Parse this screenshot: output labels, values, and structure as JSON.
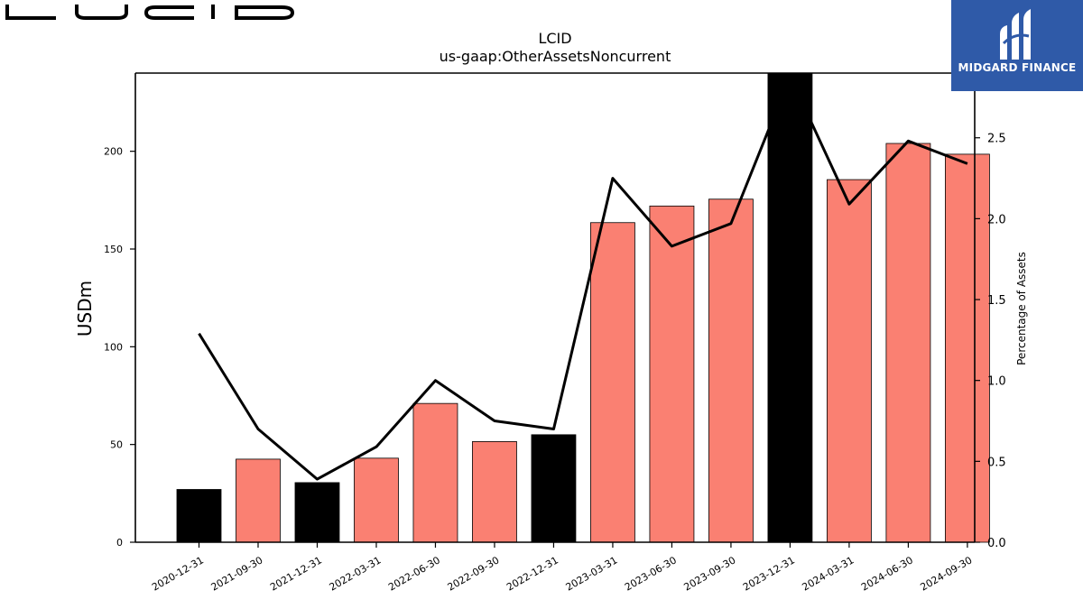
{
  "logo": {
    "company": "LUCID",
    "icon": "lucid-wordmark-logo"
  },
  "badge": {
    "label": "MIDGARD FINANCE",
    "icon": "midgard-finance-logo",
    "color": "#2f5aa8"
  },
  "chart_data": {
    "type": "bar",
    "title": "LCID",
    "subtitle": "us-gaap:OtherAssetsNoncurrent",
    "ylabel": "USDm",
    "ylabel_right": "Percentage of Assets",
    "categories": [
      "2020-12-31",
      "2021-09-30",
      "2021-12-31",
      "2022-03-31",
      "2022-06-30",
      "2022-09-30",
      "2022-12-31",
      "2023-03-31",
      "2023-06-30",
      "2023-09-30",
      "2023-12-31",
      "2024-03-31",
      "2024-06-30",
      "2024-09-30"
    ],
    "series": [
      {
        "type": "bar",
        "axis": "left",
        "values": [
          27,
          42.5,
          30.5,
          43,
          71,
          51.5,
          55,
          163.5,
          172,
          175.5,
          240,
          185.5,
          204,
          198.5
        ]
      },
      {
        "type": "line",
        "axis": "right",
        "values": [
          1.29,
          0.7,
          0.39,
          0.59,
          1.0,
          0.75,
          0.7,
          2.25,
          1.83,
          1.97,
          2.88,
          2.09,
          2.48,
          2.34
        ]
      }
    ],
    "bar_colors": [
      "#000000",
      "#fa8072",
      "#000000",
      "#fa8072",
      "#fa8072",
      "#fa8072",
      "#000000",
      "#fa8072",
      "#fa8072",
      "#fa8072",
      "#000000",
      "#fa8072",
      "#fa8072",
      "#fa8072"
    ],
    "line_color": "#000000",
    "ylim": [
      0,
      240
    ],
    "yticks": [
      0,
      50,
      100,
      150,
      200
    ],
    "ylim_right": [
      0,
      2.9
    ],
    "yticks_right": [
      "0.0",
      "0.5",
      "1.0",
      "1.5",
      "2.0",
      "2.5"
    ],
    "grid": false,
    "legend": "none"
  }
}
